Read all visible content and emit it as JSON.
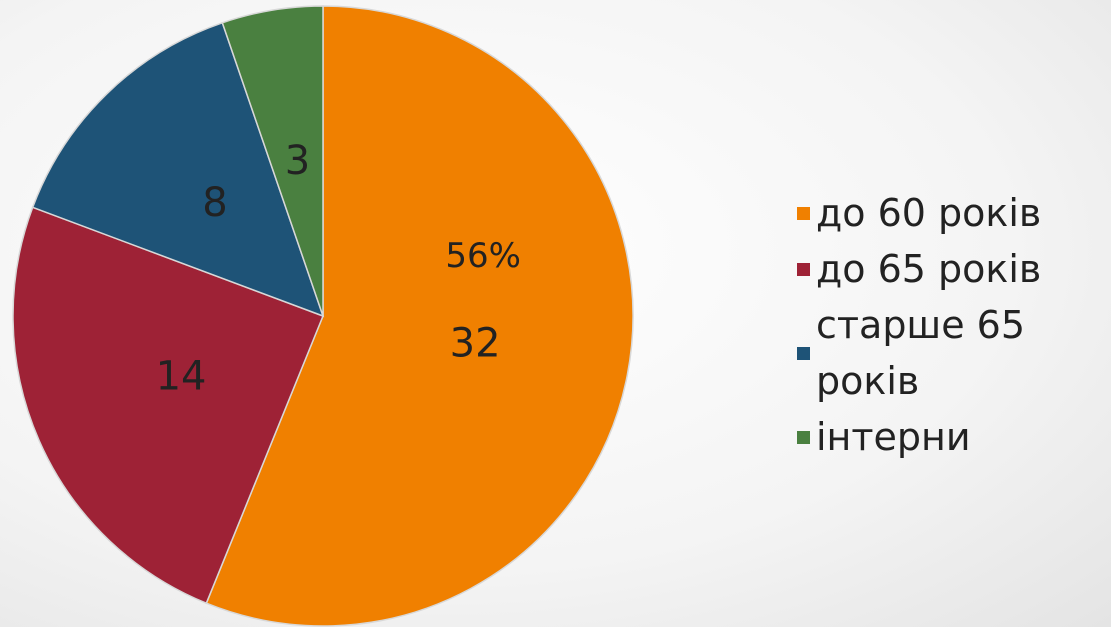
{
  "chart_data": {
    "type": "pie",
    "categories": [
      "до 60 років",
      "до 65 років",
      "старше 65 років",
      "інтерни"
    ],
    "values": [
      32,
      14,
      8,
      3
    ],
    "colors": [
      "#f08000",
      "#9e2236",
      "#1e5377",
      "#4a8040"
    ],
    "annotations": [
      "56%"
    ],
    "legend": "right"
  }
}
